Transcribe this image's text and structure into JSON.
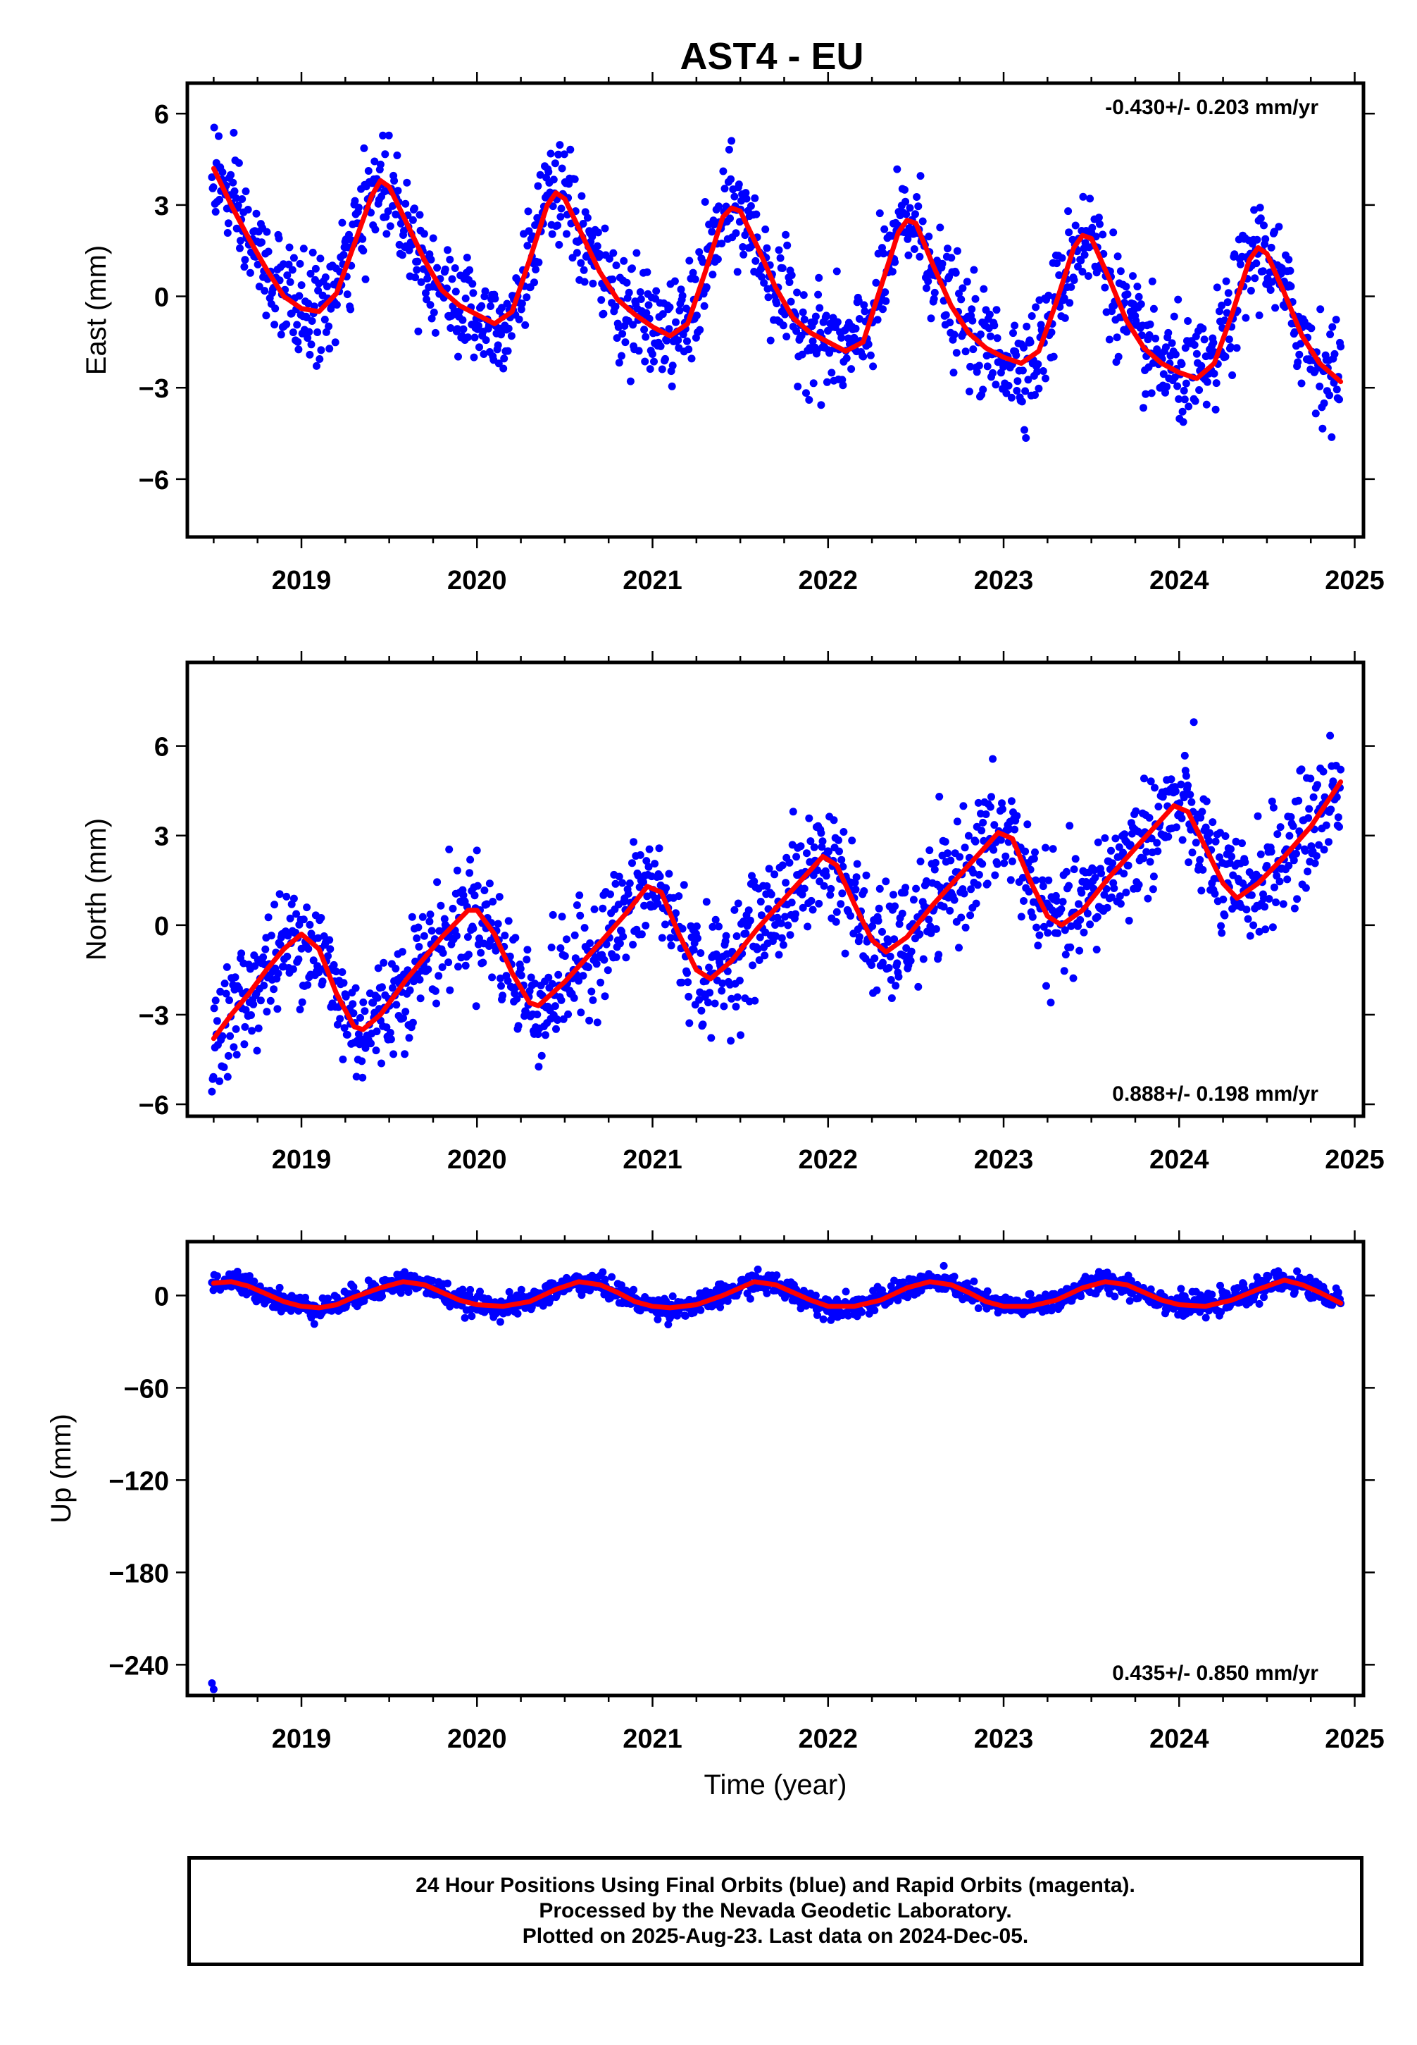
{
  "title": "AST4 - EU",
  "chart_data": [
    {
      "type": "scatter",
      "component": "east",
      "ylabel": "East (mm)",
      "xlabel": "",
      "xlim": [
        2018.35,
        2025.05
      ],
      "ylim": [
        -7.9,
        7.0
      ],
      "yticks": [
        6,
        3,
        0,
        -3,
        -6
      ],
      "ytick_labels": [
        "6",
        "3",
        "0",
        "−3",
        "−6"
      ],
      "xticks": [
        2019,
        2020,
        2021,
        2022,
        2023,
        2024,
        2025
      ],
      "xtick_labels": [
        "2019",
        "2020",
        "2021",
        "2022",
        "2023",
        "2024",
        "2025"
      ],
      "rate_text": "-0.430+/- 0.203 mm/yr",
      "rate_position": "top-right",
      "point_color": "#0000ff",
      "fit_color": "#ff0000",
      "data_start": 2018.49,
      "data_end": 2024.92,
      "scatter_sd": 0.85,
      "fit": [
        [
          2018.5,
          4.2
        ],
        [
          2018.6,
          3.0
        ],
        [
          2018.7,
          1.9
        ],
        [
          2018.8,
          0.9
        ],
        [
          2018.9,
          0.0
        ],
        [
          2019.0,
          -0.4
        ],
        [
          2019.1,
          -0.5
        ],
        [
          2019.2,
          0.1
        ],
        [
          2019.3,
          1.7
        ],
        [
          2019.4,
          3.3
        ],
        [
          2019.45,
          3.8
        ],
        [
          2019.5,
          3.6
        ],
        [
          2019.6,
          2.4
        ],
        [
          2019.7,
          1.2
        ],
        [
          2019.8,
          0.2
        ],
        [
          2019.9,
          -0.3
        ],
        [
          2020.0,
          -0.6
        ],
        [
          2020.1,
          -0.9
        ],
        [
          2020.2,
          -0.5
        ],
        [
          2020.3,
          1.2
        ],
        [
          2020.4,
          3.0
        ],
        [
          2020.45,
          3.4
        ],
        [
          2020.5,
          3.2
        ],
        [
          2020.6,
          2.0
        ],
        [
          2020.7,
          0.8
        ],
        [
          2020.8,
          -0.1
        ],
        [
          2020.9,
          -0.6
        ],
        [
          2021.0,
          -1.0
        ],
        [
          2021.1,
          -1.3
        ],
        [
          2021.2,
          -0.9
        ],
        [
          2021.3,
          0.8
        ],
        [
          2021.4,
          2.6
        ],
        [
          2021.45,
          2.9
        ],
        [
          2021.5,
          2.8
        ],
        [
          2021.6,
          1.6
        ],
        [
          2021.7,
          0.3
        ],
        [
          2021.8,
          -0.7
        ],
        [
          2021.9,
          -1.2
        ],
        [
          2022.0,
          -1.5
        ],
        [
          2022.1,
          -1.8
        ],
        [
          2022.2,
          -1.5
        ],
        [
          2022.3,
          0.3
        ],
        [
          2022.4,
          2.1
        ],
        [
          2022.45,
          2.5
        ],
        [
          2022.5,
          2.4
        ],
        [
          2022.6,
          1.0
        ],
        [
          2022.7,
          -0.3
        ],
        [
          2022.8,
          -1.2
        ],
        [
          2022.9,
          -1.7
        ],
        [
          2023.0,
          -2.0
        ],
        [
          2023.1,
          -2.2
        ],
        [
          2023.2,
          -1.8
        ],
        [
          2023.3,
          -0.2
        ],
        [
          2023.4,
          1.6
        ],
        [
          2023.45,
          2.0
        ],
        [
          2023.5,
          1.9
        ],
        [
          2023.6,
          0.6
        ],
        [
          2023.7,
          -0.8
        ],
        [
          2023.8,
          -1.7
        ],
        [
          2023.9,
          -2.2
        ],
        [
          2024.0,
          -2.5
        ],
        [
          2024.1,
          -2.7
        ],
        [
          2024.2,
          -2.2
        ],
        [
          2024.3,
          -0.6
        ],
        [
          2024.4,
          1.2
        ],
        [
          2024.45,
          1.6
        ],
        [
          2024.5,
          1.4
        ],
        [
          2024.6,
          0.1
        ],
        [
          2024.7,
          -1.3
        ],
        [
          2024.8,
          -2.2
        ],
        [
          2024.92,
          -2.8
        ]
      ]
    },
    {
      "type": "scatter",
      "component": "north",
      "ylabel": "North (mm)",
      "xlabel": "",
      "xlim": [
        2018.35,
        2025.05
      ],
      "ylim": [
        -6.4,
        8.8
      ],
      "yticks": [
        6,
        3,
        0,
        -3,
        -6
      ],
      "ytick_labels": [
        "6",
        "3",
        "0",
        "−3",
        "−6"
      ],
      "xticks": [
        2019,
        2020,
        2021,
        2022,
        2023,
        2024,
        2025
      ],
      "xtick_labels": [
        "2019",
        "2020",
        "2021",
        "2022",
        "2023",
        "2024",
        "2025"
      ],
      "rate_text": "0.888+/- 0.198 mm/yr",
      "rate_position": "bottom-right",
      "point_color": "#0000ff",
      "fit_color": "#ff0000",
      "data_start": 2018.49,
      "data_end": 2024.92,
      "scatter_sd": 0.95,
      "fit": [
        [
          2018.5,
          -3.8
        ],
        [
          2018.6,
          -3.0
        ],
        [
          2018.7,
          -2.3
        ],
        [
          2018.8,
          -1.5
        ],
        [
          2018.9,
          -0.8
        ],
        [
          2019.0,
          -0.3
        ],
        [
          2019.1,
          -0.8
        ],
        [
          2019.2,
          -2.3
        ],
        [
          2019.3,
          -3.4
        ],
        [
          2019.35,
          -3.5
        ],
        [
          2019.45,
          -3.0
        ],
        [
          2019.6,
          -1.8
        ],
        [
          2019.8,
          -0.4
        ],
        [
          2019.95,
          0.5
        ],
        [
          2020.0,
          0.5
        ],
        [
          2020.1,
          -0.3
        ],
        [
          2020.2,
          -1.6
        ],
        [
          2020.3,
          -2.6
        ],
        [
          2020.35,
          -2.7
        ],
        [
          2020.5,
          -1.9
        ],
        [
          2020.7,
          -0.6
        ],
        [
          2020.85,
          0.4
        ],
        [
          2020.97,
          1.3
        ],
        [
          2021.05,
          1.1
        ],
        [
          2021.15,
          -0.3
        ],
        [
          2021.25,
          -1.5
        ],
        [
          2021.33,
          -1.8
        ],
        [
          2021.45,
          -1.2
        ],
        [
          2021.6,
          -0.1
        ],
        [
          2021.8,
          1.2
        ],
        [
          2021.97,
          2.3
        ],
        [
          2022.05,
          2.0
        ],
        [
          2022.15,
          0.7
        ],
        [
          2022.25,
          -0.5
        ],
        [
          2022.33,
          -0.9
        ],
        [
          2022.45,
          -0.4
        ],
        [
          2022.6,
          0.7
        ],
        [
          2022.8,
          2.0
        ],
        [
          2022.97,
          3.1
        ],
        [
          2023.05,
          2.9
        ],
        [
          2023.15,
          1.5
        ],
        [
          2023.25,
          0.3
        ],
        [
          2023.33,
          0.0
        ],
        [
          2023.45,
          0.5
        ],
        [
          2023.6,
          1.6
        ],
        [
          2023.8,
          2.9
        ],
        [
          2023.97,
          4.0
        ],
        [
          2024.05,
          3.8
        ],
        [
          2024.15,
          2.6
        ],
        [
          2024.25,
          1.4
        ],
        [
          2024.33,
          0.9
        ],
        [
          2024.45,
          1.4
        ],
        [
          2024.6,
          2.3
        ],
        [
          2024.75,
          3.3
        ],
        [
          2024.92,
          4.8
        ]
      ]
    },
    {
      "type": "scatter",
      "component": "up",
      "ylabel": "Up (mm)",
      "xlabel": "Time (year)",
      "xlim": [
        2018.35,
        2025.05
      ],
      "ylim": [
        -260,
        35
      ],
      "yticks": [
        0,
        -60,
        -120,
        -180,
        -240
      ],
      "ytick_labels": [
        "0",
        "−60",
        "−120",
        "−180",
        "−240"
      ],
      "xticks": [
        2019,
        2020,
        2021,
        2022,
        2023,
        2024,
        2025
      ],
      "xtick_labels": [
        "2019",
        "2020",
        "2021",
        "2022",
        "2023",
        "2024",
        "2025"
      ],
      "rate_text": "0.435+/- 0.850 mm/yr",
      "rate_position": "bottom-right",
      "point_color": "#0000ff",
      "fit_color": "#ff0000",
      "data_start": 2018.49,
      "data_end": 2024.92,
      "scatter_sd": 3.5,
      "outliers": [
        [
          2018.49,
          -252
        ],
        [
          2018.5,
          -256
        ]
      ],
      "fit": [
        [
          2018.5,
          8
        ],
        [
          2018.6,
          9
        ],
        [
          2018.7,
          6
        ],
        [
          2018.8,
          1
        ],
        [
          2018.9,
          -4
        ],
        [
          2019.0,
          -7
        ],
        [
          2019.1,
          -8
        ],
        [
          2019.2,
          -6
        ],
        [
          2019.3,
          -1
        ],
        [
          2019.45,
          5
        ],
        [
          2019.58,
          9
        ],
        [
          2019.7,
          7
        ],
        [
          2019.8,
          2
        ],
        [
          2019.9,
          -3
        ],
        [
          2020.0,
          -6
        ],
        [
          2020.15,
          -7
        ],
        [
          2020.3,
          -4
        ],
        [
          2020.45,
          4
        ],
        [
          2020.58,
          9
        ],
        [
          2020.7,
          7
        ],
        [
          2020.8,
          2
        ],
        [
          2020.9,
          -4
        ],
        [
          2021.0,
          -7
        ],
        [
          2021.1,
          -8
        ],
        [
          2021.25,
          -6
        ],
        [
          2021.4,
          0
        ],
        [
          2021.58,
          9
        ],
        [
          2021.7,
          7
        ],
        [
          2021.8,
          2
        ],
        [
          2021.9,
          -3
        ],
        [
          2022.0,
          -7
        ],
        [
          2022.15,
          -7
        ],
        [
          2022.3,
          -3
        ],
        [
          2022.45,
          5
        ],
        [
          2022.58,
          9
        ],
        [
          2022.7,
          7
        ],
        [
          2022.8,
          2
        ],
        [
          2022.9,
          -4
        ],
        [
          2023.0,
          -7
        ],
        [
          2023.15,
          -7
        ],
        [
          2023.3,
          -3
        ],
        [
          2023.45,
          5
        ],
        [
          2023.58,
          9
        ],
        [
          2023.7,
          7
        ],
        [
          2023.8,
          2
        ],
        [
          2023.9,
          -3
        ],
        [
          2024.0,
          -6
        ],
        [
          2024.15,
          -7
        ],
        [
          2024.3,
          -3
        ],
        [
          2024.45,
          4
        ],
        [
          2024.6,
          10
        ],
        [
          2024.7,
          7
        ],
        [
          2024.8,
          2
        ],
        [
          2024.92,
          -5
        ]
      ]
    }
  ],
  "footer": {
    "line1": "24 Hour Positions Using Final Orbits (blue) and Rapid Orbits (magenta).",
    "line2": "Processed by the Nevada Geodetic Laboratory.",
    "line3": "Plotted on 2025-Aug-23. Last data on 2024-Dec-05."
  }
}
